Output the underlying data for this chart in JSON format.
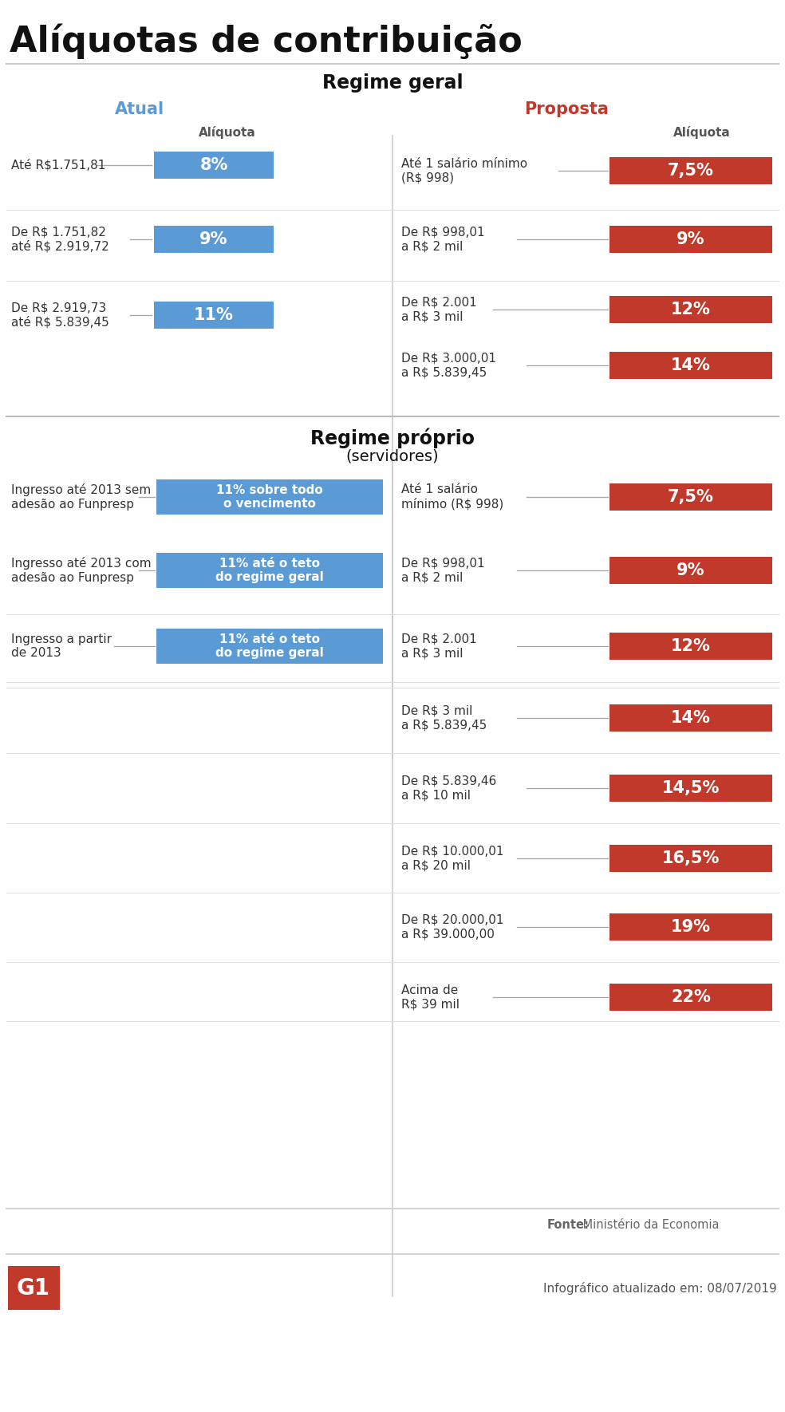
{
  "title": "Alíquotas de contribuição",
  "bg_color": "#ffffff",
  "title_color": "#1a1a1a",
  "section1_title": "Regime geral",
  "section2_title": "Regime próprio",
  "section2_sub": "(servidores)",
  "atual_color": "#5b9bd5",
  "proposta_color": "#c0392b",
  "atual_label": "Atual",
  "proposta_label": "Proposta",
  "aliquota_label": "Alíquota",
  "line_color": "#cccccc",
  "text_color": "#333333",
  "fonte_bold": "Fonte:",
  "fonte_normal": " Ministério da Economia",
  "infografico_text": "Infográfico atualizado em: 08/07/2019",
  "regime_geral_atual": [
    {
      "range": "Até R$1.751,81",
      "aliquota": "8%"
    },
    {
      "range": "De R$ 1.751,82\naté R$ 2.919,72",
      "aliquota": "9%"
    },
    {
      "range": "De R$ 2.919,73\naté R$ 5.839,45",
      "aliquota": "11%"
    }
  ],
  "regime_geral_proposta": [
    {
      "range": "Até 1 salário mínimo\n(R$ 998)",
      "aliquota": "7,5%"
    },
    {
      "range": "De R$ 998,01\na R$ 2 mil",
      "aliquota": "9%"
    },
    {
      "range": "De R$ 2.001\na R$ 3 mil",
      "aliquota": "12%"
    },
    {
      "range": "De R$ 3.000,01\na R$ 5.839,45",
      "aliquota": "14%"
    }
  ],
  "regime_proprio_atual": [
    {
      "range": "Ingresso até 2013 sem\nadesão ao Funpresp",
      "aliquota": "11% sobre todo\no vencimento"
    },
    {
      "range": "Ingresso até 2013 com\nadesão ao Funpresp",
      "aliquota": "11% até o teto\ndo regime geral"
    },
    {
      "range": "Ingresso a partir\nde 2013",
      "aliquota": "11% até o teto\ndo regime geral"
    }
  ],
  "regime_proprio_proposta": [
    {
      "range": "Até 1 salário\nmínimo (R$ 998)",
      "aliquota": "7,5%"
    },
    {
      "range": "De R$ 998,01\na R$ 2 mil",
      "aliquota": "9%"
    },
    {
      "range": "De R$ 2.001\na R$ 3 mil",
      "aliquota": "12%"
    },
    {
      "range": "De R$ 3 mil\na R$ 5.839,45",
      "aliquota": "14%"
    },
    {
      "range": "De R$ 5.839,46\na R$ 10 mil",
      "aliquota": "14,5%"
    },
    {
      "range": "De R$ 10.000,01\na R$ 20 mil",
      "aliquota": "16,5%"
    },
    {
      "range": "De R$ 20.000,01\na R$ 39.000,00",
      "aliquota": "19%"
    },
    {
      "range": "Acima de\nR$ 39 mil",
      "aliquota": "22%"
    }
  ]
}
